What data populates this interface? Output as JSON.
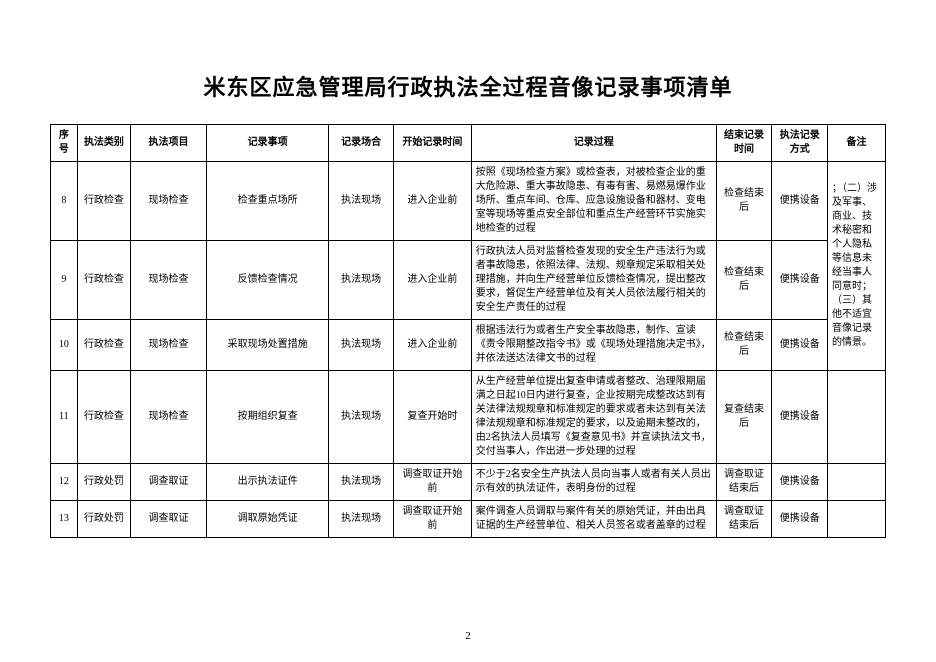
{
  "title": "米东区应急管理局行政执法全过程音像记录事项清单",
  "page_number": "2",
  "columns": {
    "seq": "序号",
    "category": "执法类别",
    "item": "执法项目",
    "matter": "记录事项",
    "occasion": "记录场合",
    "start": "开始记录时间",
    "process": "记录过程",
    "end": "结束记录时间",
    "method": "执法记录方式",
    "note": "备注"
  },
  "note_merged": "；（二）涉及军事、商业、技术秘密和个人隐私等信息未经当事人同意时；（三）其他不适宜音像记录的情景。",
  "rows": [
    {
      "seq": "8",
      "category": "行政检查",
      "item": "现场检查",
      "matter": "检查重点场所",
      "occasion": "执法现场",
      "start": "进入企业前",
      "process": "按照《现场检查方案》或检查表，对被检查企业的重大危险源、重大事故隐患、有毒有害、易燃易爆作业场所、重点车间、仓库、应急设施设备和器材、变电室等现场等重点安全部位和重点生产经营环节实施实地检查的过程",
      "end": "检查结束后",
      "method": "便携设备"
    },
    {
      "seq": "9",
      "category": "行政检查",
      "item": "现场检查",
      "matter": "反馈检查情况",
      "occasion": "执法现场",
      "start": "进入企业前",
      "process": "行政执法人员对监督检查发现的安全生产违法行为或者事故隐患，依照法律、法规、规章规定采取相关处理措施，并向生产经营单位反馈检查情况，提出整改要求，督促生产经营单位及有关人员依法履行相关的安全生产责任的过程",
      "end": "检查结束后",
      "method": "便携设备"
    },
    {
      "seq": "10",
      "category": "行政检查",
      "item": "现场检查",
      "matter": "采取现场处置措施",
      "occasion": "执法现场",
      "start": "进入企业前",
      "process": "根据违法行为或者生产安全事故隐患，制作、宣读《责令限期整改指令书》或《现场处理措施决定书》，并依法送达法律文书的过程",
      "end": "检查结束后",
      "method": "便携设备"
    },
    {
      "seq": "11",
      "category": "行政检查",
      "item": "现场检查",
      "matter": "按期组织复查",
      "occasion": "执法现场",
      "start": "复查开始时",
      "process": "从生产经营单位提出复查申请或者整改、治理限期届满之日起10日内进行复查，企业按期完成整改达到有关法律法规规章和标准规定的要求或者未达到有关法律法规规章和标准规定的要求，以及逾期未整改的，由2名执法人员填写《复查意见书》并宣读执法文书，交付当事人，作出进一步处理的过程",
      "end": "复查结束后",
      "method": "便携设备"
    },
    {
      "seq": "12",
      "category": "行政处罚",
      "item": "调查取证",
      "matter": "出示执法证件",
      "occasion": "执法现场",
      "start": "调查取证开始前",
      "process": "不少于2名安全生产执法人员向当事人或者有关人员出示有效的执法证件，表明身份的过程",
      "end": "调查取证结束后",
      "method": "便携设备"
    },
    {
      "seq": "13",
      "category": "行政处罚",
      "item": "调查取证",
      "matter": "调取原始凭证",
      "occasion": "执法现场",
      "start": "调查取证开始前",
      "process": "案件调查人员调取与案件有关的原始凭证，并由出具证据的生产经营单位、相关人员签名或者盖章的过程",
      "end": "调查取证结束后",
      "method": "便携设备"
    }
  ]
}
